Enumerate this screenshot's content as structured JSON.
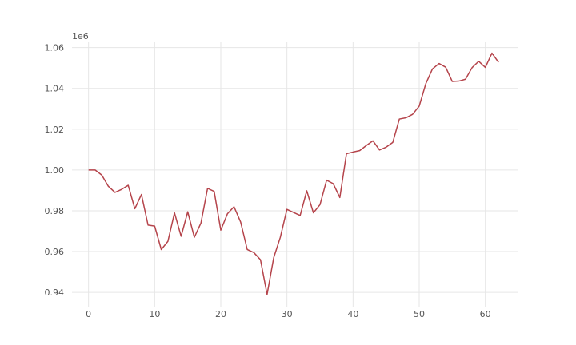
{
  "chart_data": {
    "type": "line",
    "title": "",
    "xlabel": "",
    "ylabel": "",
    "y_offset_label": "1e6",
    "xlim": [
      -2.5,
      65
    ],
    "ylim": [
      933000,
      1063000
    ],
    "x_ticks": [
      0,
      10,
      20,
      30,
      40,
      50,
      60
    ],
    "y_ticks": [
      940000,
      960000,
      980000,
      1000000,
      1020000,
      1040000,
      1060000
    ],
    "y_tick_labels": [
      "0.94",
      "0.96",
      "0.98",
      "1.00",
      "1.02",
      "1.04",
      "1.06"
    ],
    "grid": true,
    "legend": "none",
    "series": [
      {
        "color": "#b5444b",
        "x": [
          0,
          1,
          2,
          3,
          4,
          5,
          6,
          7,
          8,
          9,
          10,
          11,
          12,
          13,
          14,
          15,
          16,
          17,
          18,
          19,
          20,
          21,
          22,
          23,
          24,
          25,
          26,
          27,
          28,
          29,
          30,
          31,
          32,
          33,
          34,
          35,
          36,
          37,
          38,
          39,
          40,
          41,
          42,
          43,
          44,
          45,
          46,
          47,
          48,
          49,
          50,
          51,
          52,
          53,
          54,
          55,
          56,
          57,
          58,
          59,
          60,
          61,
          62
        ],
        "values": [
          1000000,
          1000000,
          997500,
          992000,
          989000,
          990500,
          992500,
          981000,
          988000,
          973000,
          972500,
          961000,
          965000,
          979000,
          967500,
          979500,
          967000,
          974000,
          991000,
          989500,
          970500,
          978500,
          982000,
          974500,
          961000,
          959500,
          956000,
          939000,
          957000,
          967000,
          980700,
          979200,
          977700,
          989800,
          979000,
          983000,
          995000,
          993300,
          986500,
          1008000,
          1008800,
          1009500,
          1012000,
          1014300,
          1009800,
          1011200,
          1013500,
          1025000,
          1025600,
          1027300,
          1031300,
          1042300,
          1049500,
          1052200,
          1050400,
          1043400,
          1043600,
          1044500,
          1050200,
          1053300,
          1050300,
          1057300,
          1052800
        ]
      }
    ]
  }
}
